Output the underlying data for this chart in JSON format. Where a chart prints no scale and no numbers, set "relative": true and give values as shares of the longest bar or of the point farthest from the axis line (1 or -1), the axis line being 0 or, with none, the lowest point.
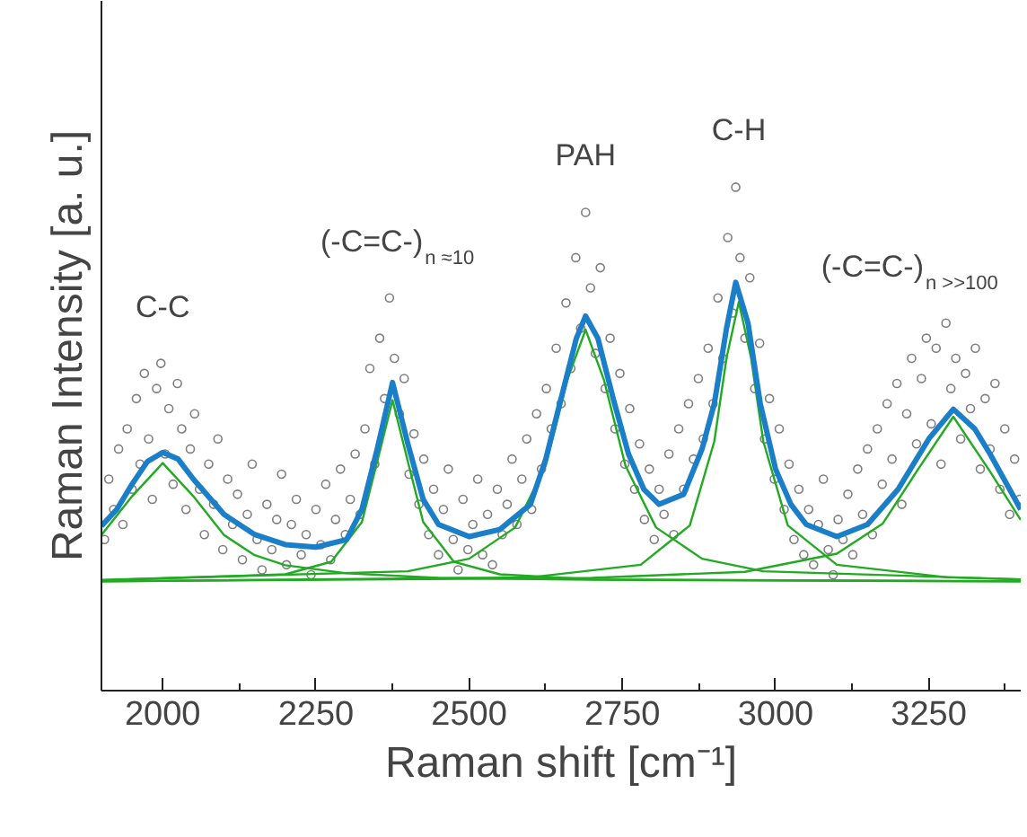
{
  "chart_data": {
    "type": "line",
    "xlabel": "Raman shift [cm⁻¹]",
    "ylabel": "Raman Intensity [a. u.]",
    "relative": true,
    "xlim": [
      1900,
      3400
    ],
    "xticks": [
      2000,
      2250,
      2500,
      2750,
      3000,
      3250
    ],
    "grid": false,
    "annotations": [
      "C-C",
      "(-C=C-)$_{n ≈10}$",
      "PAH",
      "C-H",
      "(-C=C-)$_{n >>100}$"
    ],
    "series": [
      {
        "type": "scatter",
        "marker": "circle",
        "color": "#7f7f7f",
        "x": [
          1905,
          1912,
          1920,
          1928,
          1935,
          1942,
          1950,
          1957,
          1963,
          1970,
          1977,
          1983,
          1990,
          1997,
          2004,
          2010,
          2017,
          2024,
          2031,
          2038,
          2045,
          2052,
          2060,
          2068,
          2075,
          2083,
          2090,
          2098,
          2106,
          2114,
          2122,
          2130,
          2138,
          2146,
          2154,
          2162,
          2170,
          2178,
          2186,
          2194,
          2202,
          2210,
          2218,
          2226,
          2234,
          2242,
          2250,
          2258,
          2266,
          2274,
          2282,
          2290,
          2298,
          2306,
          2314,
          2322,
          2330,
          2338,
          2346,
          2354,
          2362,
          2370,
          2378,
          2386,
          2394,
          2402,
          2410,
          2418,
          2426,
          2434,
          2442,
          2450,
          2458,
          2466,
          2474,
          2482,
          2490,
          2498,
          2506,
          2514,
          2522,
          2530,
          2538,
          2546,
          2554,
          2562,
          2570,
          2578,
          2586,
          2594,
          2602,
          2610,
          2618,
          2626,
          2634,
          2642,
          2650,
          2658,
          2666,
          2674,
          2682,
          2690,
          2698,
          2706,
          2714,
          2722,
          2730,
          2738,
          2746,
          2754,
          2762,
          2770,
          2778,
          2786,
          2794,
          2802,
          2810,
          2818,
          2826,
          2834,
          2842,
          2850,
          2858,
          2866,
          2874,
          2882,
          2890,
          2898,
          2906,
          2914,
          2922,
          2930,
          2935,
          2942,
          2950,
          2958,
          2966,
          2974,
          2982,
          2990,
          2998,
          3006,
          3014,
          3022,
          3030,
          3038,
          3046,
          3054,
          3062,
          3070,
          3078,
          3086,
          3094,
          3102,
          3110,
          3118,
          3126,
          3134,
          3142,
          3150,
          3158,
          3166,
          3174,
          3182,
          3190,
          3198,
          3206,
          3214,
          3222,
          3230,
          3238,
          3246,
          3254,
          3262,
          3270,
          3278,
          3286,
          3294,
          3302,
          3310,
          3318,
          3326,
          3334,
          3342,
          3350,
          3358,
          3366,
          3374,
          3382,
          3390,
          3398
        ],
        "values": [
          0.3,
          0.42,
          0.36,
          0.48,
          0.33,
          0.52,
          0.4,
          0.58,
          0.45,
          0.63,
          0.5,
          0.38,
          0.6,
          0.65,
          0.47,
          0.56,
          0.41,
          0.61,
          0.52,
          0.36,
          0.48,
          0.55,
          0.4,
          0.31,
          0.45,
          0.37,
          0.5,
          0.28,
          0.42,
          0.33,
          0.39,
          0.26,
          0.35,
          0.45,
          0.3,
          0.24,
          0.37,
          0.28,
          0.34,
          0.43,
          0.25,
          0.33,
          0.38,
          0.27,
          0.31,
          0.23,
          0.36,
          0.29,
          0.41,
          0.26,
          0.34,
          0.44,
          0.31,
          0.38,
          0.47,
          0.35,
          0.52,
          0.64,
          0.45,
          0.7,
          0.58,
          0.78,
          0.66,
          0.55,
          0.62,
          0.43,
          0.51,
          0.37,
          0.46,
          0.31,
          0.4,
          0.27,
          0.36,
          0.44,
          0.3,
          0.24,
          0.38,
          0.28,
          0.33,
          0.42,
          0.27,
          0.35,
          0.25,
          0.4,
          0.31,
          0.37,
          0.46,
          0.33,
          0.42,
          0.5,
          0.36,
          0.55,
          0.44,
          0.6,
          0.52,
          0.68,
          0.57,
          0.77,
          0.64,
          0.86,
          0.72,
          0.95,
          0.8,
          0.67,
          0.84,
          0.6,
          0.7,
          0.52,
          0.63,
          0.45,
          0.56,
          0.4,
          0.49,
          0.34,
          0.44,
          0.3,
          0.4,
          0.35,
          0.47,
          0.31,
          0.52,
          0.4,
          0.57,
          0.46,
          0.62,
          0.5,
          0.68,
          0.57,
          0.78,
          0.66,
          0.9,
          0.75,
          1.0,
          0.86,
          0.7,
          0.82,
          0.6,
          0.69,
          0.5,
          0.58,
          0.42,
          0.52,
          0.36,
          0.45,
          0.3,
          0.4,
          0.27,
          0.36,
          0.25,
          0.33,
          0.42,
          0.28,
          0.23,
          0.34,
          0.3,
          0.39,
          0.27,
          0.44,
          0.35,
          0.48,
          0.31,
          0.52,
          0.41,
          0.57,
          0.46,
          0.61,
          0.37,
          0.55,
          0.66,
          0.49,
          0.62,
          0.7,
          0.53,
          0.68,
          0.45,
          0.73,
          0.6,
          0.66,
          0.5,
          0.63,
          0.56,
          0.68,
          0.44,
          0.58,
          0.48,
          0.61,
          0.4,
          0.52,
          0.35,
          0.46,
          0.38
        ]
      },
      {
        "color": "#22aa22",
        "x": [
          1900,
          1950,
          2000,
          2050,
          2100,
          2150,
          2200,
          2300,
          2450,
          2700,
          3400
        ],
        "values": [
          0.309,
          0.386,
          0.452,
          0.386,
          0.309,
          0.269,
          0.249,
          0.233,
          0.224,
          0.22,
          0.217
        ]
      },
      {
        "color": "#22aa22",
        "x": [
          1900,
          2200,
          2275,
          2325,
          2350,
          2375,
          2400,
          2425,
          2475,
          2550,
          2700,
          3400
        ],
        "values": [
          0.219,
          0.231,
          0.256,
          0.335,
          0.455,
          0.577,
          0.455,
          0.335,
          0.256,
          0.231,
          0.221,
          0.217
        ]
      },
      {
        "color": "#22aa22",
        "x": [
          1900,
          2400,
          2500,
          2575,
          2625,
          2660,
          2690,
          2720,
          2755,
          2805,
          2880,
          2980,
          3400
        ],
        "values": [
          0.22,
          0.237,
          0.262,
          0.324,
          0.447,
          0.617,
          0.717,
          0.617,
          0.447,
          0.324,
          0.262,
          0.237,
          0.221
        ]
      },
      {
        "color": "#22aa22",
        "x": [
          1900,
          2600,
          2780,
          2860,
          2900,
          2920,
          2940,
          2960,
          2980,
          3020,
          3100,
          3280,
          3400
        ],
        "values": [
          0.217,
          0.225,
          0.25,
          0.328,
          0.495,
          0.661,
          0.772,
          0.661,
          0.495,
          0.328,
          0.25,
          0.225,
          0.221
        ]
      },
      {
        "color": "#22aa22",
        "x": [
          1900,
          2700,
          2950,
          3100,
          3175,
          3230,
          3290,
          3350,
          3400
        ],
        "values": [
          0.217,
          0.224,
          0.236,
          0.272,
          0.332,
          0.435,
          0.544,
          0.435,
          0.339
        ]
      },
      {
        "color": "#1a7fc8",
        "x": [
          1900,
          1925,
          1950,
          1975,
          2000,
          2025,
          2050,
          2100,
          2150,
          2200,
          2250,
          2300,
          2325,
          2350,
          2375,
          2400,
          2425,
          2450,
          2500,
          2550,
          2600,
          2625,
          2650,
          2675,
          2690,
          2710,
          2735,
          2760,
          2785,
          2810,
          2850,
          2880,
          2900,
          2920,
          2935,
          2955,
          2975,
          3000,
          3025,
          3050,
          3100,
          3150,
          3200,
          3250,
          3290,
          3325,
          3350,
          3400
        ],
        "values": [
          0.327,
          0.36,
          0.41,
          0.455,
          0.473,
          0.46,
          0.42,
          0.35,
          0.31,
          0.29,
          0.285,
          0.3,
          0.36,
          0.48,
          0.612,
          0.49,
          0.38,
          0.33,
          0.306,
          0.32,
          0.37,
          0.46,
          0.58,
          0.7,
          0.744,
          0.7,
          0.58,
          0.47,
          0.4,
          0.37,
          0.39,
          0.48,
          0.57,
          0.72,
          0.811,
          0.73,
          0.57,
          0.44,
          0.37,
          0.33,
          0.306,
          0.33,
          0.4,
          0.5,
          0.559,
          0.52,
          0.47,
          0.36
        ]
      }
    ]
  }
}
